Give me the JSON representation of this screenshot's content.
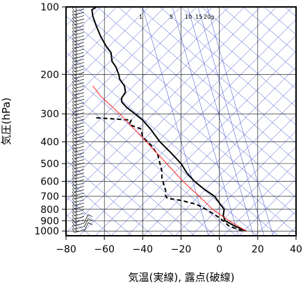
{
  "chart_data": {
    "type": "line",
    "title": "",
    "xlabel": "気温(実線), 露点(破線)",
    "ylabel": "気圧(hPa)",
    "xlim": [
      -80,
      40
    ],
    "ylim": [
      1050,
      100
    ],
    "y_scale": "log",
    "grid": true,
    "x_ticks": [
      "−80",
      "−60",
      "−40",
      "−20",
      "0",
      "20",
      "40"
    ],
    "x_tick_values": [
      -80,
      -60,
      -40,
      -20,
      0,
      20,
      40
    ],
    "y_ticks": [
      "100",
      "200",
      "300",
      "400",
      "500",
      "600",
      "700",
      "800",
      "900",
      "1000"
    ],
    "y_tick_values": [
      100,
      200,
      300,
      400,
      500,
      600,
      700,
      800,
      900,
      1000
    ],
    "mixing_ratio_labels": [
      "1",
      "5",
      "10",
      "15",
      "20g"
    ],
    "mixing_ratio_values": [
      1,
      5,
      10,
      15,
      20
    ],
    "colors": {
      "temperature": "#000000",
      "dewpoint": "#000000",
      "reference": "#ff2020",
      "background_lines": "#3344cc",
      "grid": "#000000"
    },
    "series": [
      {
        "key": "temperature",
        "style": "solid",
        "points": [
          {
            "p": 1000,
            "t": 14.0
          },
          {
            "p": 950,
            "t": 8.0
          },
          {
            "p": 900,
            "t": 3.0
          },
          {
            "p": 850,
            "t": 2.0
          },
          {
            "p": 800,
            "t": 2.5
          },
          {
            "p": 760,
            "t": 0.5
          },
          {
            "p": 720,
            "t": -1.5
          },
          {
            "p": 700,
            "t": -2.5
          },
          {
            "p": 650,
            "t": -8.0
          },
          {
            "p": 600,
            "t": -13.0
          },
          {
            "p": 550,
            "t": -17.0
          },
          {
            "p": 500,
            "t": -20.0
          },
          {
            "p": 450,
            "t": -25.0
          },
          {
            "p": 400,
            "t": -31.0
          },
          {
            "p": 350,
            "t": -36.0
          },
          {
            "p": 320,
            "t": -40.0
          },
          {
            "p": 300,
            "t": -44.0
          },
          {
            "p": 280,
            "t": -48.5
          },
          {
            "p": 265,
            "t": -51.0
          },
          {
            "p": 255,
            "t": -51.0
          },
          {
            "p": 240,
            "t": -49.0
          },
          {
            "p": 225,
            "t": -49.5
          },
          {
            "p": 210,
            "t": -52.0
          },
          {
            "p": 200,
            "t": -52.5
          },
          {
            "p": 185,
            "t": -54.0
          },
          {
            "p": 175,
            "t": -56.0
          },
          {
            "p": 160,
            "t": -56.5
          },
          {
            "p": 150,
            "t": -59.0
          },
          {
            "p": 135,
            "t": -62.0
          },
          {
            "p": 120,
            "t": -64.5
          },
          {
            "p": 110,
            "t": -66.0
          },
          {
            "p": 103,
            "t": -66.5
          },
          {
            "p": 100,
            "t": -64.0
          }
        ]
      },
      {
        "key": "dewpoint",
        "style": "dashed",
        "points": [
          {
            "p": 1000,
            "t": 12.0
          },
          {
            "p": 950,
            "t": 5.0
          },
          {
            "p": 900,
            "t": 2.0
          },
          {
            "p": 850,
            "t": -2.0
          },
          {
            "p": 800,
            "t": -7.0
          },
          {
            "p": 760,
            "t": -12.0
          },
          {
            "p": 730,
            "t": -20.0
          },
          {
            "p": 715,
            "t": -27.0
          },
          {
            "p": 700,
            "t": -28.0
          },
          {
            "p": 660,
            "t": -28.0
          },
          {
            "p": 620,
            "t": -29.0
          },
          {
            "p": 580,
            "t": -30.0
          },
          {
            "p": 540,
            "t": -30.0
          },
          {
            "p": 500,
            "t": -31.0
          },
          {
            "p": 460,
            "t": -32.0
          },
          {
            "p": 420,
            "t": -35.0
          },
          {
            "p": 380,
            "t": -40.0
          },
          {
            "p": 350,
            "t": -41.0
          },
          {
            "p": 335,
            "t": -47.0
          },
          {
            "p": 320,
            "t": -46.0
          },
          {
            "p": 312,
            "t": -65.0
          }
        ]
      },
      {
        "key": "reference",
        "style": "solid",
        "points": [
          {
            "p": 1000,
            "t": 14.0
          },
          {
            "p": 900,
            "t": 5.0
          },
          {
            "p": 800,
            "t": -3.5
          },
          {
            "p": 700,
            "t": -10.5
          },
          {
            "p": 600,
            "t": -19.0
          },
          {
            "p": 500,
            "t": -27.5
          },
          {
            "p": 400,
            "t": -38.0
          },
          {
            "p": 300,
            "t": -52.0
          },
          {
            "p": 250,
            "t": -62.0
          },
          {
            "p": 225,
            "t": -66.0
          }
        ]
      }
    ],
    "wind_barbs": true
  }
}
